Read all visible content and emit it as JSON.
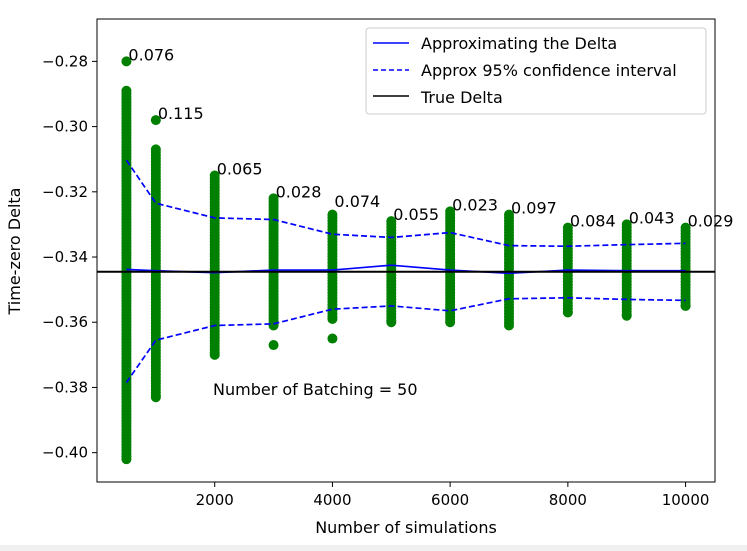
{
  "chart_data": {
    "type": "scatter",
    "title": "",
    "xlabel": "Number of simulations",
    "ylabel": "Time-zero Delta",
    "xlim": [
      0,
      10500
    ],
    "ylim": [
      -0.409,
      -0.267
    ],
    "xticks": [
      2000,
      4000,
      6000,
      8000,
      10000
    ],
    "yticks": [
      -0.28,
      -0.3,
      -0.32,
      -0.34,
      -0.36,
      -0.38,
      -0.4
    ],
    "xtick_labels": [
      "2000",
      "4000",
      "6000",
      "8000",
      "10000"
    ],
    "ytick_labels": [
      "−0.28",
      "−0.30",
      "−0.32",
      "−0.34",
      "−0.36",
      "−0.38",
      "−0.40"
    ],
    "grid": false,
    "legend_position": "top-right",
    "annotation": "Number of Batching = 50",
    "true_delta": -0.3445,
    "colors": {
      "points": "#008000",
      "approx": "#0000ff",
      "true": "#000000"
    },
    "x": [
      500,
      1000,
      2000,
      3000,
      4000,
      5000,
      6000,
      7000,
      8000,
      9000,
      10000
    ],
    "point_ranges": [
      {
        "x": 500,
        "min": -0.402,
        "max": -0.289,
        "outlier": -0.28
      },
      {
        "x": 1000,
        "min": -0.383,
        "max": -0.307,
        "outlier": -0.298
      },
      {
        "x": 2000,
        "min": -0.37,
        "max": -0.315
      },
      {
        "x": 3000,
        "min": -0.361,
        "max": -0.322,
        "outlier": -0.367
      },
      {
        "x": 4000,
        "min": -0.359,
        "max": -0.327,
        "outlier": -0.365
      },
      {
        "x": 5000,
        "min": -0.36,
        "max": -0.329
      },
      {
        "x": 6000,
        "min": -0.36,
        "max": -0.326
      },
      {
        "x": 7000,
        "min": -0.361,
        "max": -0.327
      },
      {
        "x": 8000,
        "min": -0.357,
        "max": -0.331
      },
      {
        "x": 9000,
        "min": -0.358,
        "max": -0.33
      },
      {
        "x": 10000,
        "min": -0.355,
        "max": -0.331
      }
    ],
    "point_labels": [
      "0.076",
      "0.115",
      "0.065",
      "0.028",
      "0.074",
      "0.055",
      "0.023",
      "0.097",
      "0.084",
      "0.043",
      "0.029"
    ],
    "label_y": [
      -0.28,
      -0.298,
      -0.315,
      -0.322,
      -0.325,
      -0.329,
      -0.326,
      -0.327,
      -0.331,
      -0.33,
      -0.331
    ],
    "series": [
      {
        "name": "Approximating the Delta",
        "style": "solid",
        "color": "#0000ff",
        "values": [
          -0.3438,
          -0.3442,
          -0.3448,
          -0.344,
          -0.344,
          -0.3425,
          -0.344,
          -0.345,
          -0.344,
          -0.3442,
          -0.3442
        ]
      },
      {
        "name": "Approx 95% confidence interval",
        "style": "dashed",
        "color": "#0000ff",
        "values": [
          -0.3103,
          -0.3235,
          -0.328,
          -0.3285,
          -0.333,
          -0.334,
          -0.3325,
          -0.3365,
          -0.3367,
          -0.3362,
          -0.3358
        ]
      },
      {
        "name": "",
        "style": "dashed",
        "color": "#0000ff",
        "values": [
          -0.3785,
          -0.3655,
          -0.361,
          -0.3605,
          -0.356,
          -0.355,
          -0.3565,
          -0.3528,
          -0.3525,
          -0.353,
          -0.3533
        ]
      },
      {
        "name": "True Delta",
        "style": "solid",
        "color": "#000000",
        "values": [
          -0.3445,
          -0.3445
        ]
      }
    ],
    "legend": [
      "Approximating the Delta",
      "Approx 95% confidence interval",
      "True Delta"
    ]
  }
}
